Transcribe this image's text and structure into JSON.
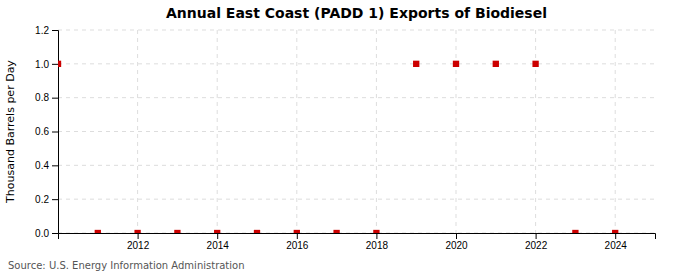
{
  "chart_data": {
    "type": "scatter",
    "title": "Annual East Coast (PADD 1) Exports of Biodiesel",
    "y_label": "Thousand Barrels per Day",
    "annotation": "Source: U.S. Energy Information Administration",
    "x": [
      2010,
      2011,
      2012,
      2013,
      2014,
      2015,
      2016,
      2017,
      2018,
      2019,
      2020,
      2021,
      2022,
      2023,
      2024
    ],
    "values": [
      1.0,
      0.0,
      0.0,
      0.0,
      0.0,
      0.0,
      0.0,
      0.0,
      0.0,
      1.0,
      1.0,
      1.0,
      1.0,
      0.0,
      0.0
    ],
    "color": "#cc0000",
    "marker": "square",
    "xlim": [
      2010.0,
      2025.0
    ],
    "xticks": [
      2012,
      2014,
      2016,
      2018,
      2020,
      2022,
      2024
    ],
    "ylim": [
      0.0,
      1.2
    ],
    "yticks": [
      {
        "value": 0.0,
        "label": "0.0"
      },
      0.2,
      0.4,
      0.6,
      0.8,
      {
        "value": 1.0,
        "label": "1.0"
      },
      1.2
    ],
    "grid": true
  }
}
